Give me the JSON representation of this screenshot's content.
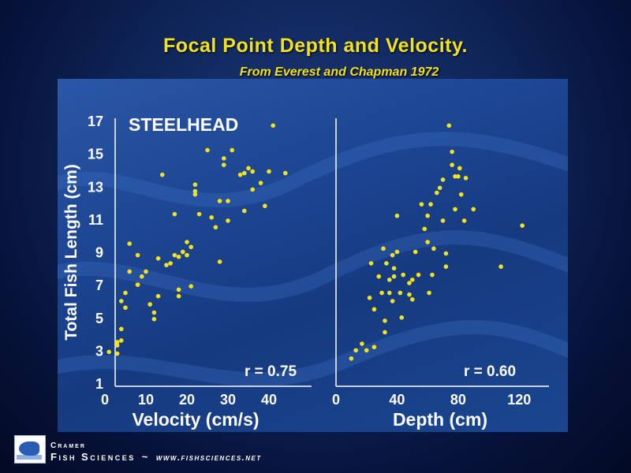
{
  "header": {
    "title": "Focal Point Depth and Velocity.",
    "subtitle": "From Everest and Chapman 1972"
  },
  "colors": {
    "point": "#f2e21c",
    "title": "#f2e21c",
    "axis": "#ffffff"
  },
  "chart_data": [
    {
      "type": "scatter",
      "label": "STEELHEAD",
      "xlabel": "Velocity (cm/s)",
      "ylabel": "Total Fish Length (cm)",
      "xlim": [
        0,
        45
      ],
      "ylim": [
        1,
        17
      ],
      "xticks": [
        "0",
        "10",
        "20",
        "30",
        "40"
      ],
      "yticks": [
        "1",
        "3",
        "5",
        "7",
        "9",
        "11",
        "13",
        "15",
        "17"
      ],
      "annotation": "r = 0.75",
      "x": [
        1,
        3,
        3,
        4,
        3,
        4,
        5,
        5,
        4,
        6,
        6,
        8,
        8,
        8,
        9,
        10,
        11,
        12,
        12,
        13,
        13,
        14,
        15,
        16,
        17,
        17,
        18,
        18,
        18,
        19,
        19,
        20,
        20,
        21,
        21,
        22,
        22,
        22,
        23,
        25,
        26,
        27,
        28,
        28,
        29,
        29,
        30,
        30,
        31,
        33,
        34,
        34,
        35,
        36,
        36,
        38,
        39,
        40,
        41,
        44
      ],
      "y": [
        2.9,
        2.8,
        3.3,
        3.6,
        3.5,
        4.3,
        5.6,
        6.5,
        6.0,
        7.8,
        9.5,
        7.0,
        7.0,
        8.8,
        7.5,
        7.8,
        5.8,
        5.3,
        4.9,
        6.3,
        8.6,
        13.7,
        8.2,
        8.3,
        11.3,
        8.8,
        6.7,
        6.3,
        8.7,
        9.0,
        9.0,
        9.6,
        8.8,
        6.9,
        9.3,
        12.5,
        12.7,
        13.1,
        11.3,
        15.2,
        11.1,
        10.5,
        8.4,
        12.1,
        14.3,
        14.7,
        12.1,
        10.9,
        15.2,
        13.7,
        13.8,
        11.5,
        14.1,
        12.8,
        13.9,
        13.2,
        11.8,
        13.9,
        16.7,
        13.8
      ]
    },
    {
      "type": "scatter",
      "xlabel": "Depth (cm)",
      "xlim": [
        0,
        125
      ],
      "ylim": [
        1,
        17
      ],
      "xticks": [
        "0",
        "40",
        "80",
        "120"
      ],
      "annotation": "r = 0.60",
      "x": [
        10,
        13,
        17,
        20,
        22,
        23,
        25,
        25,
        28,
        30,
        31,
        32,
        32,
        33,
        35,
        35,
        37,
        37,
        38,
        38,
        40,
        40,
        42,
        43,
        44,
        48,
        48,
        50,
        50,
        52,
        54,
        56,
        58,
        60,
        60,
        61,
        62,
        63,
        64,
        66,
        68,
        70,
        70,
        72,
        72,
        74,
        76,
        76,
        78,
        78,
        80,
        81,
        82,
        84,
        85,
        90,
        108,
        122
      ],
      "y": [
        2.5,
        3.0,
        3.4,
        3.0,
        6.2,
        8.3,
        3.2,
        5.5,
        7.5,
        6.5,
        9.2,
        4.1,
        4.8,
        8.3,
        6.5,
        7.3,
        6.0,
        8.8,
        7.5,
        8.0,
        9.0,
        11.2,
        6.5,
        5.0,
        7.6,
        7.1,
        6.4,
        6.1,
        7.3,
        9.0,
        7.6,
        11.9,
        10.4,
        9.6,
        11.2,
        6.5,
        11.9,
        7.6,
        9.2,
        12.6,
        12.9,
        13.4,
        10.9,
        8.9,
        8.1,
        16.7,
        15.1,
        14.3,
        13.6,
        11.6,
        13.6,
        14.1,
        12.5,
        10.9,
        13.5,
        11.6,
        8.1,
        10.6
      ]
    }
  ]
}
